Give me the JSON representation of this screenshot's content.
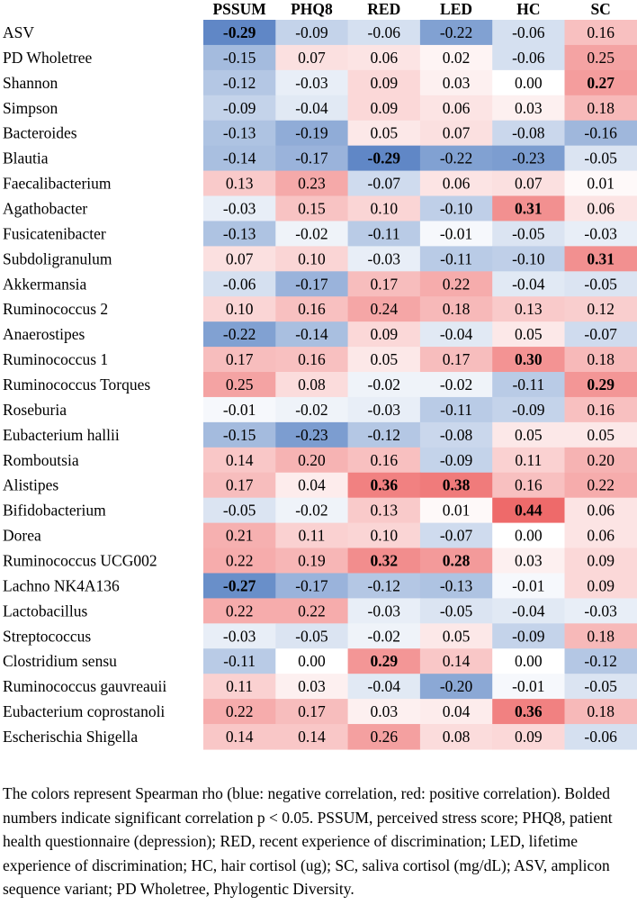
{
  "chart_data": {
    "type": "heatmap",
    "columns": [
      "PSSUM",
      "PHQ8",
      "RED",
      "LED",
      "HC",
      "SC"
    ],
    "rows": [
      {
        "label": "ASV",
        "values": [
          -0.29,
          -0.09,
          -0.06,
          -0.22,
          -0.06,
          0.16
        ],
        "bold": [
          true,
          false,
          false,
          false,
          false,
          false
        ]
      },
      {
        "label": "PD Wholetree",
        "values": [
          -0.15,
          0.07,
          0.06,
          0.02,
          -0.06,
          0.25
        ],
        "bold": [
          false,
          false,
          false,
          false,
          false,
          false
        ]
      },
      {
        "label": "Shannon",
        "values": [
          -0.12,
          -0.03,
          0.09,
          0.03,
          0.0,
          0.27
        ],
        "bold": [
          false,
          false,
          false,
          false,
          false,
          true
        ]
      },
      {
        "label": "Simpson",
        "values": [
          -0.09,
          -0.04,
          0.09,
          0.06,
          0.03,
          0.18
        ],
        "bold": [
          false,
          false,
          false,
          false,
          false,
          false
        ]
      },
      {
        "label": "Bacteroides",
        "values": [
          -0.13,
          -0.19,
          0.05,
          0.07,
          -0.08,
          -0.16
        ],
        "bold": [
          false,
          false,
          false,
          false,
          false,
          false
        ]
      },
      {
        "label": "Blautia",
        "values": [
          -0.14,
          -0.17,
          -0.29,
          -0.22,
          -0.23,
          -0.05
        ],
        "bold": [
          false,
          false,
          true,
          false,
          false,
          false
        ]
      },
      {
        "label": "Faecalibacterium",
        "values": [
          0.13,
          0.23,
          -0.07,
          0.06,
          0.07,
          0.01
        ],
        "bold": [
          false,
          false,
          false,
          false,
          false,
          false
        ]
      },
      {
        "label": "Agathobacter",
        "values": [
          -0.03,
          0.15,
          0.1,
          -0.1,
          0.31,
          0.06
        ],
        "bold": [
          false,
          false,
          false,
          false,
          true,
          false
        ]
      },
      {
        "label": "Fusicatenibacter",
        "values": [
          -0.13,
          -0.02,
          -0.11,
          -0.01,
          -0.05,
          -0.03
        ],
        "bold": [
          false,
          false,
          false,
          false,
          false,
          false
        ]
      },
      {
        "label": "Subdoligranulum",
        "values": [
          0.07,
          0.1,
          -0.03,
          -0.11,
          -0.1,
          0.31
        ],
        "bold": [
          false,
          false,
          false,
          false,
          false,
          true
        ]
      },
      {
        "label": "Akkermansia",
        "values": [
          -0.06,
          -0.17,
          0.17,
          0.22,
          -0.04,
          -0.05
        ],
        "bold": [
          false,
          false,
          false,
          false,
          false,
          false
        ]
      },
      {
        "label": "Ruminococcus 2",
        "values": [
          0.1,
          0.16,
          0.24,
          0.18,
          0.13,
          0.12
        ],
        "bold": [
          false,
          false,
          false,
          false,
          false,
          false
        ]
      },
      {
        "label": "Anaerostipes",
        "values": [
          -0.22,
          -0.14,
          0.09,
          -0.04,
          0.05,
          -0.07
        ],
        "bold": [
          false,
          false,
          false,
          false,
          false,
          false
        ]
      },
      {
        "label": "Ruminococcus 1",
        "values": [
          0.17,
          0.16,
          0.05,
          0.17,
          0.3,
          0.18
        ],
        "bold": [
          false,
          false,
          false,
          false,
          true,
          false
        ]
      },
      {
        "label": "Ruminococcus Torques",
        "values": [
          0.25,
          0.08,
          -0.02,
          -0.02,
          -0.11,
          0.29
        ],
        "bold": [
          false,
          false,
          false,
          false,
          false,
          true
        ]
      },
      {
        "label": "Roseburia",
        "values": [
          -0.01,
          -0.02,
          -0.03,
          -0.11,
          -0.09,
          0.16
        ],
        "bold": [
          false,
          false,
          false,
          false,
          false,
          false
        ]
      },
      {
        "label": "Eubacterium hallii",
        "values": [
          -0.15,
          -0.23,
          -0.12,
          -0.08,
          0.05,
          0.05
        ],
        "bold": [
          false,
          false,
          false,
          false,
          false,
          false
        ]
      },
      {
        "label": "Romboutsia",
        "values": [
          0.14,
          0.2,
          0.16,
          -0.09,
          0.11,
          0.2
        ],
        "bold": [
          false,
          false,
          false,
          false,
          false,
          false
        ]
      },
      {
        "label": "Alistipes",
        "values": [
          0.17,
          0.04,
          0.36,
          0.38,
          0.16,
          0.22
        ],
        "bold": [
          false,
          false,
          true,
          true,
          false,
          false
        ]
      },
      {
        "label": "Bifidobacterium",
        "values": [
          -0.05,
          -0.02,
          0.13,
          0.01,
          0.44,
          0.06
        ],
        "bold": [
          false,
          false,
          false,
          false,
          true,
          false
        ]
      },
      {
        "label": "Dorea",
        "values": [
          0.21,
          0.11,
          0.1,
          -0.07,
          0.0,
          0.06
        ],
        "bold": [
          false,
          false,
          false,
          false,
          false,
          false
        ]
      },
      {
        "label": "Ruminococcus UCG002",
        "values": [
          0.22,
          0.19,
          0.32,
          0.28,
          0.03,
          0.09
        ],
        "bold": [
          false,
          false,
          true,
          true,
          false,
          false
        ]
      },
      {
        "label": "Lachno NK4A136",
        "values": [
          -0.27,
          -0.17,
          -0.12,
          -0.13,
          -0.01,
          0.09
        ],
        "bold": [
          true,
          false,
          false,
          false,
          false,
          false
        ]
      },
      {
        "label": "Lactobacillus",
        "values": [
          0.22,
          0.22,
          -0.03,
          -0.05,
          -0.04,
          -0.03
        ],
        "bold": [
          false,
          false,
          false,
          false,
          false,
          false
        ]
      },
      {
        "label": "Streptococcus",
        "values": [
          -0.03,
          -0.05,
          -0.02,
          0.05,
          -0.09,
          0.18
        ],
        "bold": [
          false,
          false,
          false,
          false,
          false,
          false
        ]
      },
      {
        "label": "Clostridium sensu",
        "values": [
          -0.11,
          0.0,
          0.29,
          0.14,
          0.0,
          -0.12
        ],
        "bold": [
          false,
          false,
          true,
          false,
          false,
          false
        ]
      },
      {
        "label": "Ruminococcus gauvreauii",
        "values": [
          0.11,
          0.03,
          -0.04,
          -0.2,
          -0.01,
          -0.05
        ],
        "bold": [
          false,
          false,
          false,
          false,
          false,
          false
        ]
      },
      {
        "label": "Eubacterium coprostanoli",
        "values": [
          0.22,
          0.17,
          0.03,
          0.04,
          0.36,
          0.18
        ],
        "bold": [
          false,
          false,
          false,
          false,
          true,
          false
        ]
      },
      {
        "label": "Escherischia Shigella",
        "values": [
          0.14,
          0.14,
          0.26,
          0.08,
          0.09,
          -0.06
        ],
        "bold": [
          false,
          false,
          false,
          false,
          false,
          false
        ]
      }
    ],
    "color_scale": {
      "negative": "#5b84c4",
      "neutral": "#ffffff",
      "positive": "#ee6a6a",
      "min": -0.3,
      "max": 0.44
    }
  },
  "caption": "The colors represent Spearman rho (blue: negative correlation, red: positive correlation). Bolded numbers indicate significant correlation p < 0.05. PSSUM, perceived stress score; PHQ8, patient health questionnaire (depression); RED, recent experience of discrimination; LED, lifetime experience of discrimination; HC, hair cortisol (ug); SC, saliva cortisol (mg/dL); ASV, amplicon sequence variant; PD Wholetree, Phylogentic Diversity."
}
